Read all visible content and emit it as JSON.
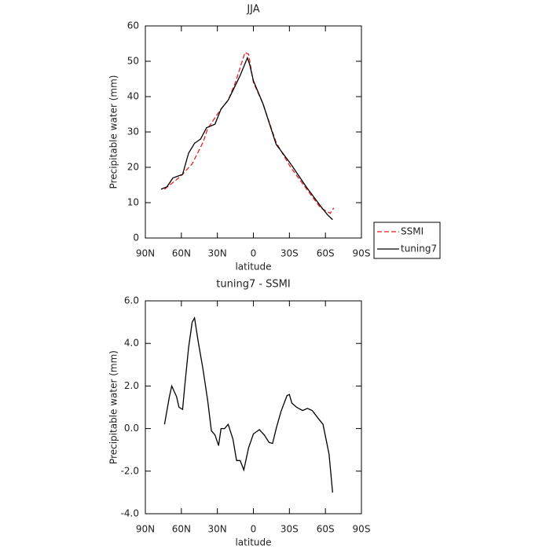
{
  "chart_data": [
    {
      "type": "line",
      "title": "JJA",
      "xlabel": "latitude",
      "ylabel": "Precipitable water (mm)",
      "xlim": [
        90,
        -90
      ],
      "xticks": [
        {
          "value": 90,
          "label": "90N"
        },
        {
          "value": 60,
          "label": "60N"
        },
        {
          "value": 30,
          "label": "30N"
        },
        0,
        {
          "value": -30,
          "label": "30S"
        },
        {
          "value": -60,
          "label": "60S"
        },
        {
          "value": -90,
          "label": "90S"
        }
      ],
      "ylim": [
        0,
        60
      ],
      "yticks": [
        0,
        10,
        20,
        30,
        40,
        50,
        60
      ],
      "legend": "right",
      "series": [
        {
          "name": "SSMI",
          "color": "#e8211f",
          "dashed": true,
          "x": [
            74,
            60.5,
            51,
            42,
            38,
            28,
            21,
            15,
            7,
            4,
            0,
            -8,
            -19,
            -31,
            -44,
            -56,
            -64,
            -67
          ],
          "values": [
            13.8,
            17.5,
            21,
            27,
            31,
            36,
            39,
            44,
            52.5,
            52,
            44,
            38,
            27,
            20,
            14,
            8.5,
            7,
            8.5
          ]
        },
        {
          "name": "tuning7",
          "color": "#000000",
          "dashed": false,
          "x": [
            77,
            72,
            67,
            59,
            54,
            49,
            44,
            39,
            32,
            27,
            21,
            16,
            11,
            5,
            3,
            0,
            -8,
            -19,
            -31,
            -44,
            -56,
            -62,
            -66
          ],
          "values": [
            13.8,
            14.5,
            17,
            18,
            24,
            26.8,
            28,
            31.2,
            32.2,
            36.5,
            39,
            42.5,
            46,
            51,
            49,
            44.5,
            38,
            26.5,
            21,
            14.5,
            9,
            6.5,
            5.2
          ]
        }
      ]
    },
    {
      "type": "line",
      "title": "tuning7 - SSMI",
      "xlabel": "latitude",
      "ylabel": "Precipitable water (mm)",
      "xlim": [
        90,
        -90
      ],
      "xticks": [
        {
          "value": 90,
          "label": "90N"
        },
        {
          "value": 60,
          "label": "60N"
        },
        {
          "value": 30,
          "label": "30N"
        },
        0,
        {
          "value": -30,
          "label": "30S"
        },
        {
          "value": -60,
          "label": "60S"
        },
        {
          "value": -90,
          "label": "90S"
        }
      ],
      "ylim": [
        -4,
        6
      ],
      "yticks": [
        {
          "value": -4,
          "label": "-4.0"
        },
        {
          "value": -2,
          "label": "-2.0"
        },
        {
          "value": 0,
          "label": "0.0"
        },
        {
          "value": 2,
          "label": "2.0"
        },
        {
          "value": 4,
          "label": "4.0"
        },
        {
          "value": 6,
          "label": "6.0"
        }
      ],
      "series": [
        {
          "color": "#000000",
          "dashed": false,
          "x": [
            74,
            70,
            68,
            64,
            62,
            59,
            57,
            54,
            51,
            49,
            46,
            42,
            38,
            35,
            32,
            29,
            27,
            24,
            21,
            17,
            14,
            11,
            8,
            4,
            0,
            -5,
            -9,
            -13,
            -16,
            -19,
            -23,
            -28,
            -30,
            -32,
            -36,
            -41,
            -45,
            -49,
            -53,
            -58,
            -63,
            -66
          ],
          "values": [
            0.2,
            1.5,
            2.0,
            1.5,
            1.0,
            0.9,
            2.1,
            3.8,
            5.0,
            5.2,
            4.1,
            2.8,
            1.3,
            -0.1,
            -0.3,
            -0.8,
            0.0,
            0.0,
            0.2,
            -0.5,
            -1.5,
            -1.5,
            -1.95,
            -0.9,
            -0.25,
            -0.05,
            -0.3,
            -0.65,
            -0.7,
            0,
            0.8,
            1.55,
            1.6,
            1.2,
            1.0,
            0.85,
            0.95,
            0.85,
            0.55,
            0.2,
            -1.2,
            -3.0
          ]
        }
      ]
    }
  ]
}
